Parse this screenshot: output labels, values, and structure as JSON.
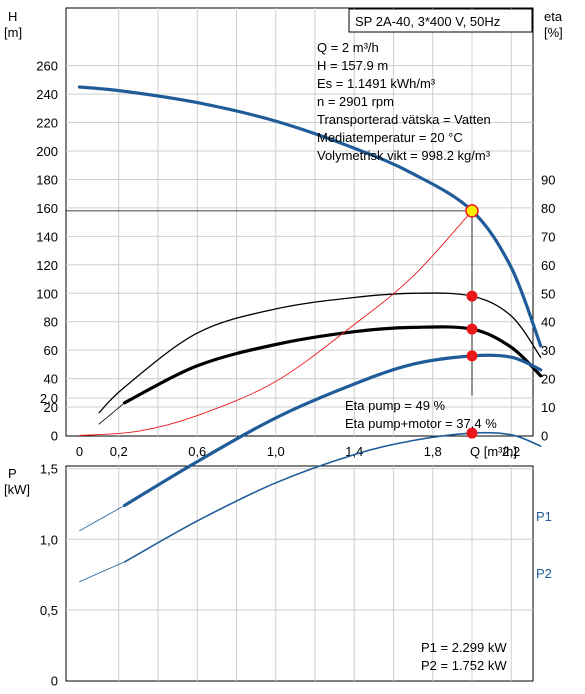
{
  "chart_data": [
    {
      "type": "line",
      "title": "SP 2A-40, 3*400 V, 50Hz",
      "xlabel": "Q [m³/h]",
      "ylabel_left": [
        "H",
        "[m]"
      ],
      "ylabel_right": [
        "eta",
        "[%]"
      ],
      "xlim": [
        0,
        2.36
      ],
      "ylim_left": [
        0,
        280
      ],
      "ylim_right": [
        0,
        140
      ],
      "grid": true,
      "x_ticks": [
        "0",
        "0,2",
        "0,6",
        "1,0",
        "1,4",
        "1,8",
        "2,2"
      ],
      "x_tick_values": [
        0,
        0.2,
        0.6,
        1.0,
        1.4,
        1.8,
        2.2
      ],
      "y_ticks_left": [
        0,
        20,
        40,
        60,
        80,
        100,
        120,
        140,
        160,
        180,
        200,
        220,
        240,
        260
      ],
      "y_ticks_right": [
        0,
        10,
        20,
        30,
        40,
        50,
        60,
        70,
        80,
        90
      ],
      "info_lines": [
        "Q = 2 m³/h",
        "H = 157.9 m",
        "Es = 1.1491 kWh/m³",
        "n = 2901 rpm",
        "Transporterad vätska = Vatten",
        "Mediatemperatur = 20 °C",
        "Volymetrisk vikt = 998.2 kg/m³"
      ],
      "eta_lines": [
        "Eta pump = 49 %",
        "Eta pump+motor = 37.4 %"
      ],
      "series": [
        {
          "axis": "left",
          "style": "head",
          "x": [
            0.0,
            0.23,
            0.6,
            1.0,
            1.4,
            1.7,
            2.0,
            2.2,
            2.35
          ],
          "values": [
            245,
            242,
            234,
            221,
            202,
            184,
            158,
            118,
            63
          ]
        },
        {
          "axis": "left",
          "style": "head-ext",
          "x": [
            0.0,
            0.23
          ],
          "values": [
            245,
            242
          ]
        },
        {
          "axis": "right",
          "style": "eta-pump",
          "x": [
            0.1,
            0.23,
            0.6,
            1.0,
            1.4,
            1.7,
            2.0,
            2.2,
            2.35
          ],
          "values": [
            8,
            17,
            36,
            44.5,
            48.5,
            50,
            49,
            42,
            27.5
          ]
        },
        {
          "axis": "right",
          "style": "eta-total",
          "x": [
            0.23,
            0.6,
            1.0,
            1.4,
            1.7,
            2.0,
            2.2,
            2.35
          ],
          "values": [
            11.5,
            24.5,
            32,
            36.5,
            38,
            37.4,
            31,
            21
          ]
        },
        {
          "axis": "right",
          "style": "eta-total-ext",
          "x": [
            0.1,
            0.23
          ],
          "values": [
            4,
            11.5
          ]
        },
        {
          "axis": "left",
          "style": "system",
          "x": [
            0.0,
            0.3,
            0.6,
            1.0,
            1.4,
            1.7,
            2.0
          ],
          "values": [
            0,
            3,
            14,
            38,
            78,
            112,
            157.9
          ]
        }
      ],
      "duty_point": {
        "x": 2.0,
        "head": 157.9,
        "eta_pump": 49,
        "eta_total": 37.4
      }
    },
    {
      "type": "line",
      "ylabel": [
        "P",
        "[kW]"
      ],
      "xlim": [
        0,
        2.36
      ],
      "ylim": [
        0,
        2.5
      ],
      "grid": true,
      "y_ticks": [
        "0",
        "0,5",
        "1,0",
        "1,5",
        "2,0"
      ],
      "y_tick_values": [
        0,
        0.5,
        1.0,
        1.5,
        2.0
      ],
      "legend": [
        "P1",
        "P2"
      ],
      "series": [
        {
          "name": "P1",
          "style": "p1",
          "x": [
            0.23,
            0.6,
            1.0,
            1.4,
            1.7,
            2.0,
            2.2,
            2.35
          ],
          "values": [
            1.24,
            1.55,
            1.86,
            2.1,
            2.24,
            2.299,
            2.29,
            2.2
          ]
        },
        {
          "name": "P1",
          "style": "p1-ext",
          "x": [
            0.0,
            0.23
          ],
          "values": [
            1.06,
            1.24
          ]
        },
        {
          "name": "P2",
          "style": "p2",
          "x": [
            0.23,
            0.6,
            1.0,
            1.4,
            1.7,
            2.0,
            2.2,
            2.35
          ],
          "values": [
            0.84,
            1.13,
            1.4,
            1.6,
            1.7,
            1.752,
            1.74,
            1.66
          ]
        },
        {
          "name": "P2",
          "style": "p2-ext",
          "x": [
            0.0,
            0.23
          ],
          "values": [
            0.7,
            0.84
          ]
        }
      ],
      "duty_point": {
        "x": 2.0,
        "p1": 2.299,
        "p2": 1.752
      },
      "readout": [
        "P1 = 2.299 kW",
        "P2 = 1.752 kW"
      ]
    }
  ],
  "colors": {
    "blue": "#1f5c99",
    "red": "#e8171c",
    "grid": "#cfcfcf",
    "yellow": "#ffee00"
  }
}
